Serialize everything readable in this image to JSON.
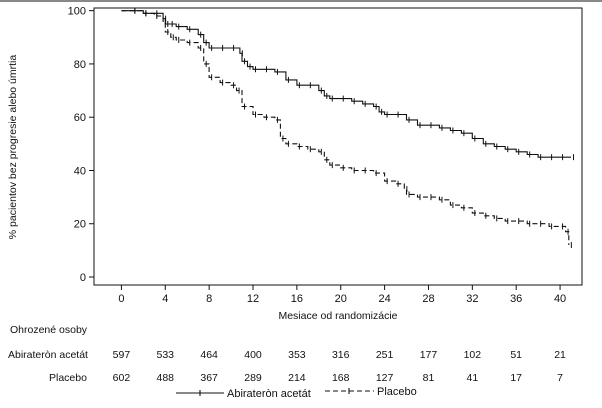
{
  "chart_data": {
    "type": "line",
    "xlabel": "Mesiace od randomizácie",
    "ylabel": "% pacientov bez progresie alebo úmrtia",
    "xlim": [
      -2.5,
      42
    ],
    "ylim": [
      -3,
      101
    ],
    "x_ticks": [
      "0",
      "4",
      "8",
      "12",
      "16",
      "20",
      "24",
      "28",
      "32",
      "36",
      "40"
    ],
    "y_ticks": [
      "0",
      "20",
      "40",
      "60",
      "80",
      "100"
    ],
    "series": [
      {
        "name": "Abirateròn acetát",
        "line_style": "solid",
        "color": "#111111",
        "x": [
          0,
          1,
          2,
          3,
          3.8,
          4.0,
          4.4,
          5,
          6,
          7,
          7.5,
          8,
          9,
          10,
          10.8,
          11,
          11.5,
          12,
          13,
          14,
          15,
          16,
          17,
          18,
          18.5,
          19,
          20,
          21,
          22,
          23,
          23.5,
          24,
          25,
          26,
          27,
          28,
          29,
          30,
          31,
          32,
          33,
          34,
          35,
          36,
          37,
          38,
          39,
          40,
          41
        ],
        "y": [
          100,
          100,
          99,
          99,
          97,
          95,
          95,
          94,
          93,
          91,
          88,
          86,
          86,
          86,
          84,
          81,
          79,
          78,
          78,
          77,
          74,
          72,
          72,
          70,
          68,
          67,
          67,
          66,
          65,
          64,
          62,
          61,
          61,
          59,
          57,
          57,
          56,
          55,
          54,
          52,
          50,
          49,
          48,
          47,
          46,
          45,
          45,
          45,
          45
        ]
      },
      {
        "name": "Placebo",
        "line_style": "dashed",
        "color": "#111111",
        "x": [
          0,
          1,
          2,
          3,
          3.8,
          4.0,
          4.5,
          5,
          6,
          7,
          7.5,
          8,
          9,
          10,
          10.5,
          11,
          12,
          13,
          14,
          14.5,
          15,
          16,
          17,
          18,
          18.5,
          19,
          20,
          21,
          22,
          23,
          24,
          25,
          25.8,
          26,
          27,
          28,
          29,
          30,
          31,
          32,
          33,
          34,
          35,
          36,
          37,
          38,
          39,
          40,
          40.5,
          40.8
        ],
        "y": [
          100,
          100,
          99,
          98,
          96,
          92,
          90,
          89,
          88,
          86,
          80,
          75,
          73,
          72,
          70,
          64,
          61,
          60,
          59,
          52,
          50,
          49,
          48,
          47,
          44,
          42,
          41,
          40,
          40,
          39,
          36,
          35,
          33,
          31,
          30,
          30,
          29,
          27,
          26,
          24,
          23,
          22,
          21,
          21,
          20,
          20,
          19,
          19,
          17,
          12
        ]
      }
    ],
    "risk_table": {
      "title": "Ohrozené osoby",
      "rows": [
        {
          "label": "Abirateròn acetát",
          "values": [
            "597",
            "533",
            "464",
            "400",
            "353",
            "316",
            "251",
            "177",
            "102",
            "51",
            "21"
          ]
        },
        {
          "label": "Placebo",
          "values": [
            "602",
            "488",
            "367",
            "289",
            "214",
            "168",
            "127",
            "81",
            "41",
            "17",
            "7"
          ]
        }
      ]
    },
    "legend": {
      "position": "bottom",
      "entries": [
        "Abirateròn acetát",
        "Placebo"
      ]
    }
  }
}
